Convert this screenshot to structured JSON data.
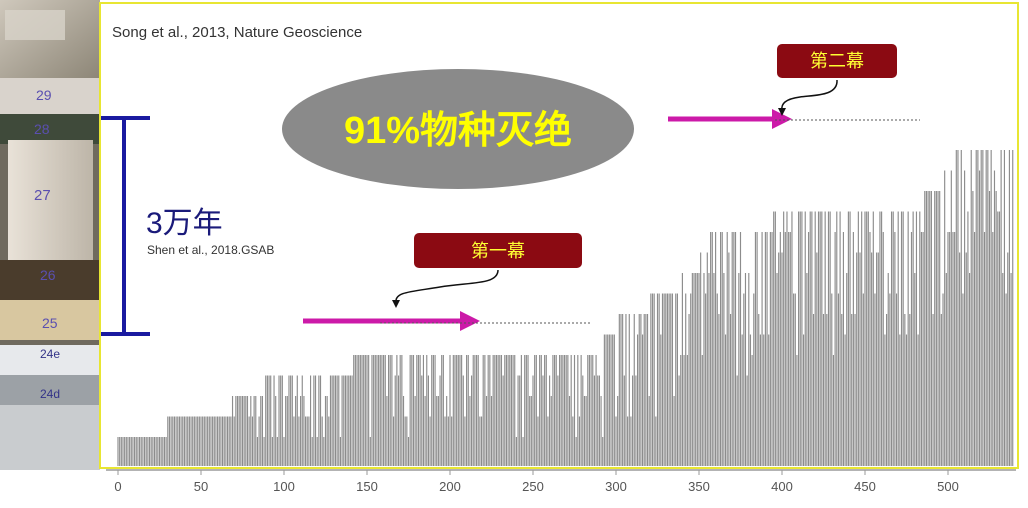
{
  "chart_data": {
    "type": "bar",
    "title": "",
    "xlabel": "",
    "ylabel": "",
    "xlim": [
      0,
      540
    ],
    "x_ticks": [
      0,
      50,
      100,
      150,
      200,
      250,
      300,
      350,
      400,
      450,
      500
    ],
    "bar_color": "#8c8c8c",
    "levels": [
      {
        "x0": 0,
        "x1": 30,
        "level": 1
      },
      {
        "x0": 30,
        "x1": 68,
        "level": 2
      },
      {
        "x0": 68,
        "x1": 88,
        "level": 3
      },
      {
        "x0": 88,
        "x1": 142,
        "level": 4
      },
      {
        "x0": 142,
        "x1": 287,
        "level": 5
      },
      {
        "x0": 287,
        "x1": 300,
        "level": 6
      },
      {
        "x0": 300,
        "x1": 320,
        "level": 7
      },
      {
        "x0": 320,
        "x1": 340,
        "level": 8
      },
      {
        "x0": 340,
        "x1": 350,
        "level": 9
      },
      {
        "x0": 350,
        "x1": 356,
        "level": 10
      },
      {
        "x0": 356,
        "x1": 395,
        "level": 11
      },
      {
        "x0": 395,
        "x1": 485,
        "level": 12
      },
      {
        "x0": 485,
        "x1": 498,
        "level": 13
      },
      {
        "x0": 498,
        "x1": 505,
        "level": 14
      },
      {
        "x0": 505,
        "x1": 540,
        "level": 15
      }
    ],
    "annotations": {
      "citation_top": "Song et al., 2013, Nature Geoscience",
      "citation_mid": "Shen et al., 2018.GSAB",
      "duration": "3万年",
      "extinction": "91%物种灭绝",
      "phase1": "第一幕",
      "phase2": "第二幕"
    },
    "colors": {
      "ellipse": "#8a8a8a",
      "ellipse_text": "#ffff00",
      "label_box": "#8b0a12",
      "label_text": "#ffff33",
      "arrow": "#cc1aa8",
      "bracket": "#1a1aa0",
      "frame": "#e8e632"
    }
  },
  "photo": {
    "bed_labels": [
      "29",
      "28",
      "27",
      "26",
      "25",
      "24e",
      "24d"
    ]
  }
}
